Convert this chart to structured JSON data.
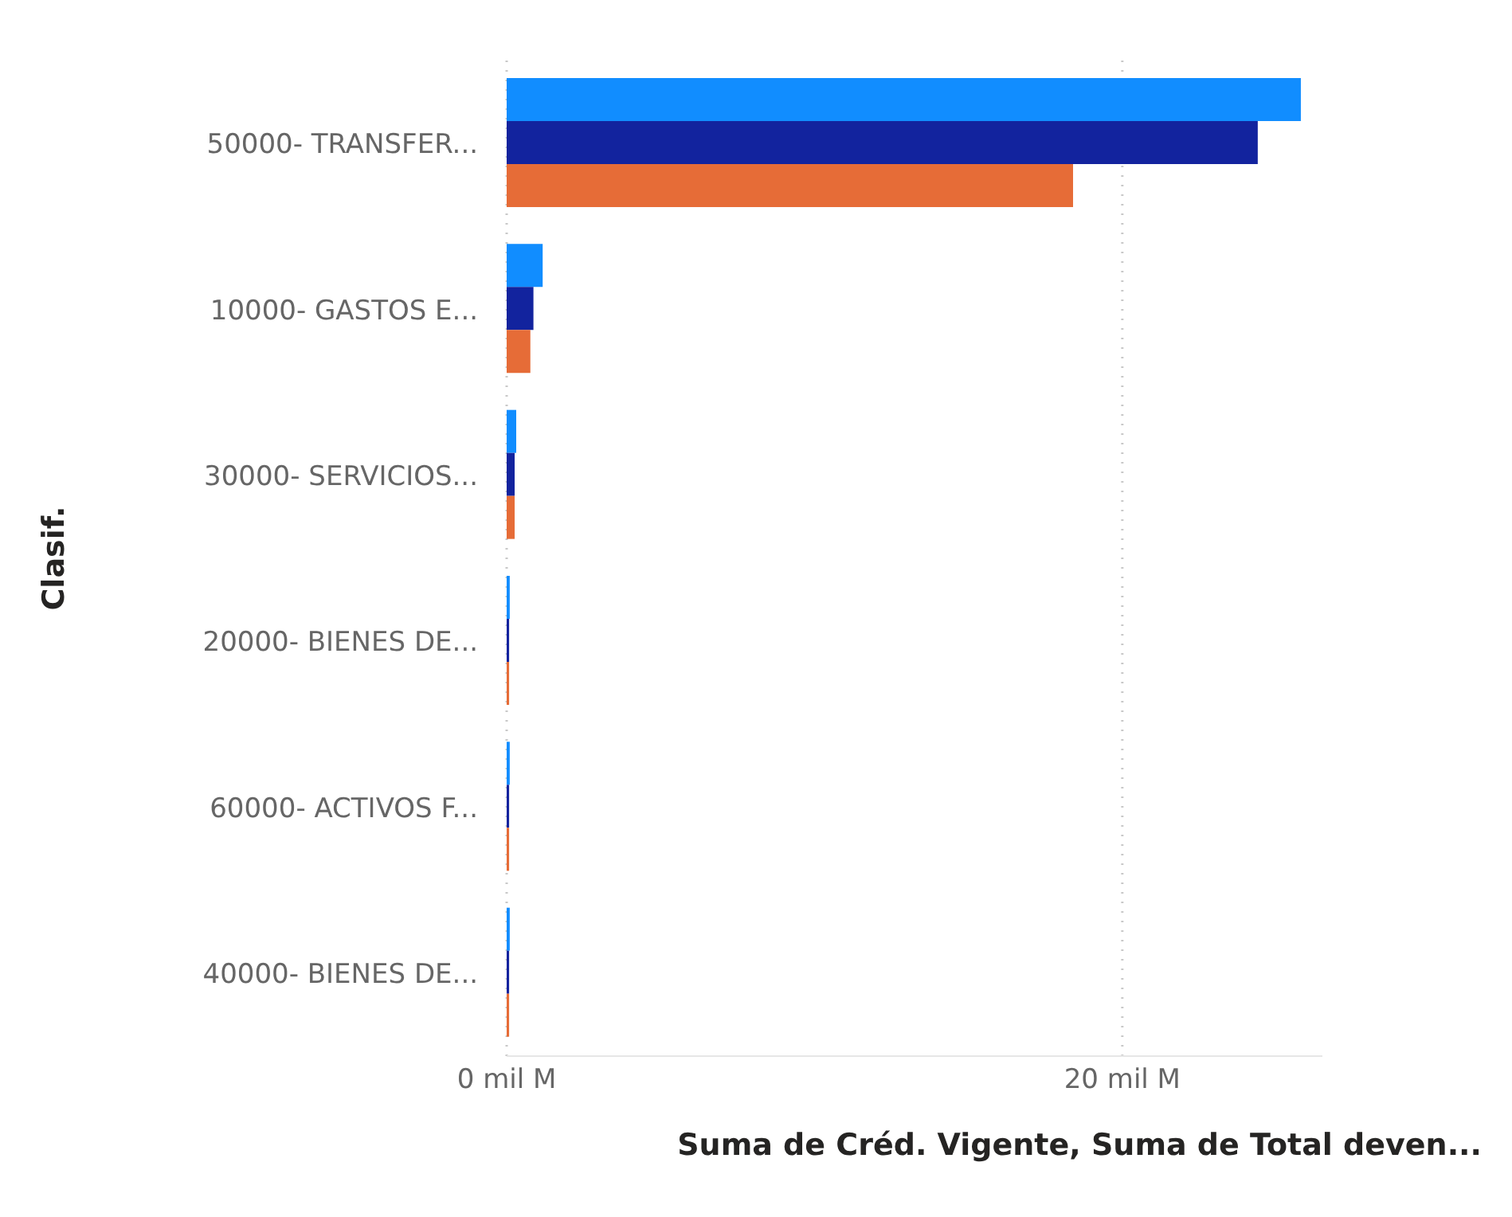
{
  "chart_data": {
    "type": "bar",
    "orientation": "horizontal",
    "xlabel": "Suma de Créd. Vigente, Suma de Total deven...",
    "ylabel": "Clasif.",
    "categories": [
      "50000- TRANSFER...",
      "10000- GASTOS E...",
      "30000- SERVICIOS...",
      "20000- BIENES DE...",
      "60000- ACTIVOS F...",
      "40000- BIENES DE..."
    ],
    "series": [
      {
        "color": "#118dff",
        "values": [
          25.8,
          1.17,
          0.31,
          0.1,
          0.1,
          0.1
        ]
      },
      {
        "color": "#12239e",
        "values": [
          24.4,
          0.87,
          0.26,
          0.08,
          0.08,
          0.08
        ]
      },
      {
        "color": "#e66c37",
        "values": [
          18.4,
          0.77,
          0.26,
          0.08,
          0.08,
          0.08
        ]
      }
    ],
    "xticks": [
      {
        "value": 0,
        "label": "0 mil M"
      },
      {
        "value": 20,
        "label": "20 mil M"
      }
    ],
    "xlim": [
      0,
      26.5
    ],
    "grid": "x",
    "legend": false
  }
}
